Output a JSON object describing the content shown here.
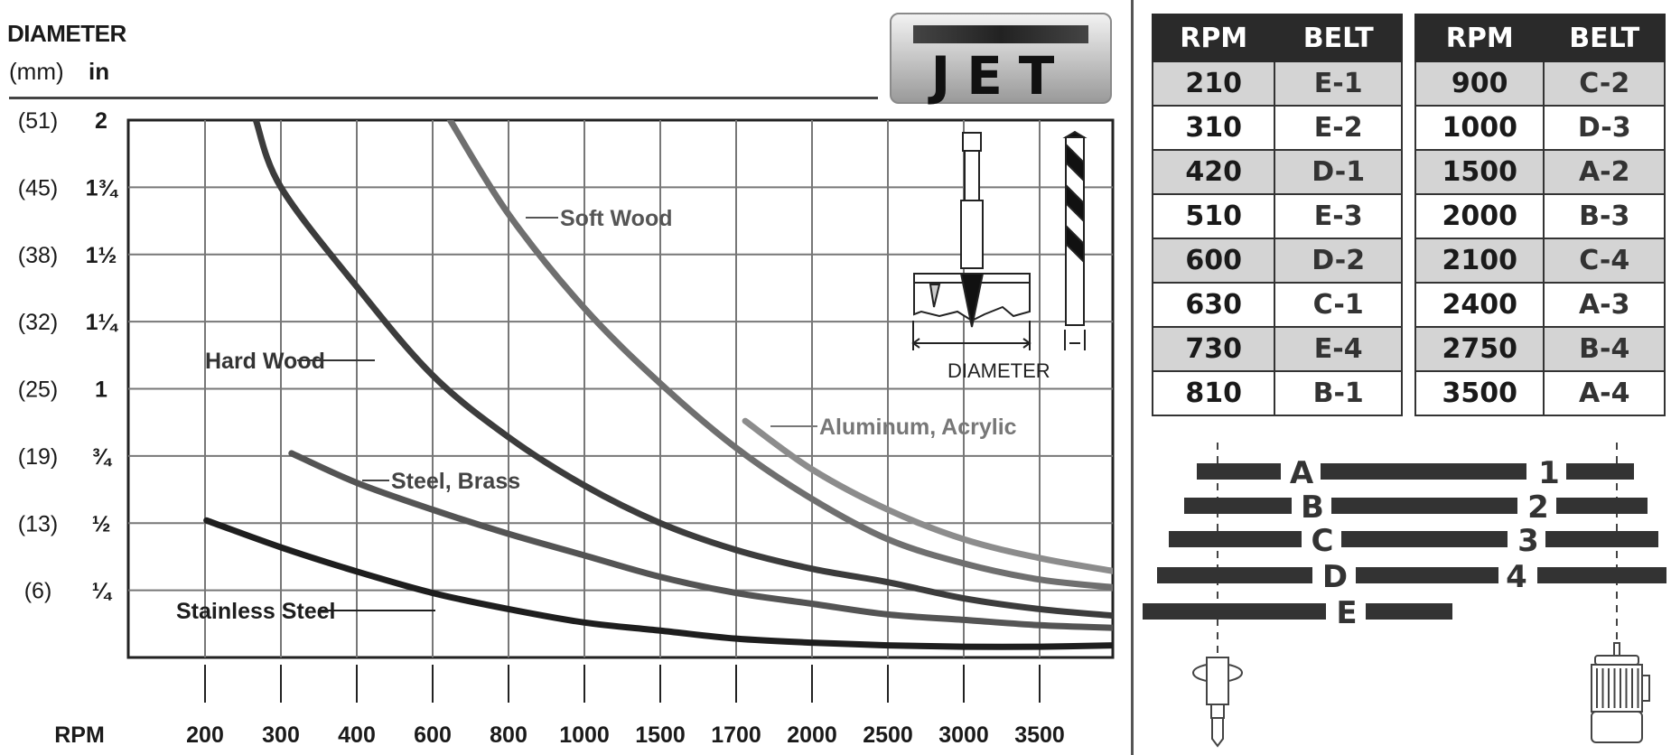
{
  "header": {
    "title": "DIAMETER",
    "unit_mm": "(mm)",
    "unit_in": "in",
    "logo_text": "JET"
  },
  "inset": {
    "label": "DIAMETER"
  },
  "chart_data": {
    "type": "line",
    "title": "DIAMETER",
    "xlabel": "RPM",
    "ylabel": "DIAMETER (mm) in",
    "categories": [
      "200",
      "300",
      "400",
      "600",
      "800",
      "1000",
      "1500",
      "1700",
      "2000",
      "2500",
      "3000",
      "3500"
    ],
    "x_note": "x values are positions along the RPM category axis (0 = 200 ... 11 = 3500)",
    "xlim": [
      -1,
      12
    ],
    "ylim": [
      0,
      2
    ],
    "grid": true,
    "y_ticks": [
      {
        "value": 2,
        "mm": "(51)",
        "in": "2"
      },
      {
        "value": 1.75,
        "mm": "(45)",
        "in": "1¾"
      },
      {
        "value": 1.5,
        "mm": "(38)",
        "in": "1½"
      },
      {
        "value": 1.25,
        "mm": "(32)",
        "in": "1¼"
      },
      {
        "value": 1,
        "mm": "(25)",
        "in": "1"
      },
      {
        "value": 0.75,
        "mm": "(19)",
        "in": "¾"
      },
      {
        "value": 0.5,
        "mm": "(13)",
        "in": "½"
      },
      {
        "value": 0.25,
        "mm": "(6)",
        "in": "¼"
      }
    ],
    "series": [
      {
        "name": "Soft Wood",
        "color": "#6f6f6f",
        "points": [
          [
            3.23,
            2.0
          ],
          [
            4,
            1.65
          ],
          [
            5,
            1.3
          ],
          [
            6,
            1.02
          ],
          [
            7,
            0.78
          ],
          [
            8,
            0.59
          ],
          [
            9,
            0.44
          ],
          [
            10,
            0.35
          ],
          [
            11,
            0.29
          ],
          [
            12,
            0.26
          ]
        ]
      },
      {
        "name": "Hard Wood",
        "color": "#3c3c3c",
        "points": [
          [
            0.67,
            2.0
          ],
          [
            1,
            1.75
          ],
          [
            2,
            1.38
          ],
          [
            3,
            1.05
          ],
          [
            4,
            0.82
          ],
          [
            5,
            0.64
          ],
          [
            6,
            0.5
          ],
          [
            7,
            0.4
          ],
          [
            8,
            0.33
          ],
          [
            9,
            0.28
          ],
          [
            10,
            0.22
          ],
          [
            11,
            0.18
          ],
          [
            12,
            0.155
          ]
        ]
      },
      {
        "name": "Aluminum, Acrylic",
        "color": "#8c8c8c",
        "points": [
          [
            7.12,
            0.88
          ],
          [
            8,
            0.7
          ],
          [
            9,
            0.55
          ],
          [
            10,
            0.44
          ],
          [
            11,
            0.37
          ],
          [
            12,
            0.32
          ]
        ]
      },
      {
        "name": "Steel, Brass",
        "color": "#545454",
        "points": [
          [
            1.14,
            0.76
          ],
          [
            2,
            0.65
          ],
          [
            3,
            0.55
          ],
          [
            4,
            0.46
          ],
          [
            5,
            0.38
          ],
          [
            6,
            0.3
          ],
          [
            7,
            0.24
          ],
          [
            8,
            0.2
          ],
          [
            9,
            0.16
          ],
          [
            10,
            0.14
          ],
          [
            11,
            0.12
          ],
          [
            12,
            0.11
          ]
        ]
      },
      {
        "name": "Stainless Steel",
        "color": "#1e1e1e",
        "points": [
          [
            0.02,
            0.51
          ],
          [
            1,
            0.41
          ],
          [
            2,
            0.32
          ],
          [
            3,
            0.24
          ],
          [
            4,
            0.18
          ],
          [
            5,
            0.13
          ],
          [
            6,
            0.1
          ],
          [
            7,
            0.07
          ],
          [
            8,
            0.055
          ],
          [
            9,
            0.045
          ],
          [
            10,
            0.04
          ],
          [
            11,
            0.04
          ],
          [
            12,
            0.045
          ]
        ]
      }
    ]
  },
  "tables": [
    {
      "headers": [
        "RPM",
        "BELT"
      ],
      "rows": [
        [
          "210",
          "E-1"
        ],
        [
          "310",
          "E-2"
        ],
        [
          "420",
          "D-1"
        ],
        [
          "510",
          "E-3"
        ],
        [
          "600",
          "D-2"
        ],
        [
          "630",
          "C-1"
        ],
        [
          "730",
          "E-4"
        ],
        [
          "810",
          "B-1"
        ]
      ]
    },
    {
      "headers": [
        "RPM",
        "BELT"
      ],
      "rows": [
        [
          "900",
          "C-2"
        ],
        [
          "1000",
          "D-3"
        ],
        [
          "1500",
          "A-2"
        ],
        [
          "2000",
          "B-3"
        ],
        [
          "2100",
          "C-4"
        ],
        [
          "2400",
          "A-3"
        ],
        [
          "2750",
          "B-4"
        ],
        [
          "3500",
          "A-4"
        ]
      ]
    }
  ],
  "belt_diagram": {
    "spindle_steps": [
      "A",
      "B",
      "C",
      "D",
      "E"
    ],
    "motor_steps": [
      "1",
      "2",
      "3",
      "4"
    ]
  }
}
